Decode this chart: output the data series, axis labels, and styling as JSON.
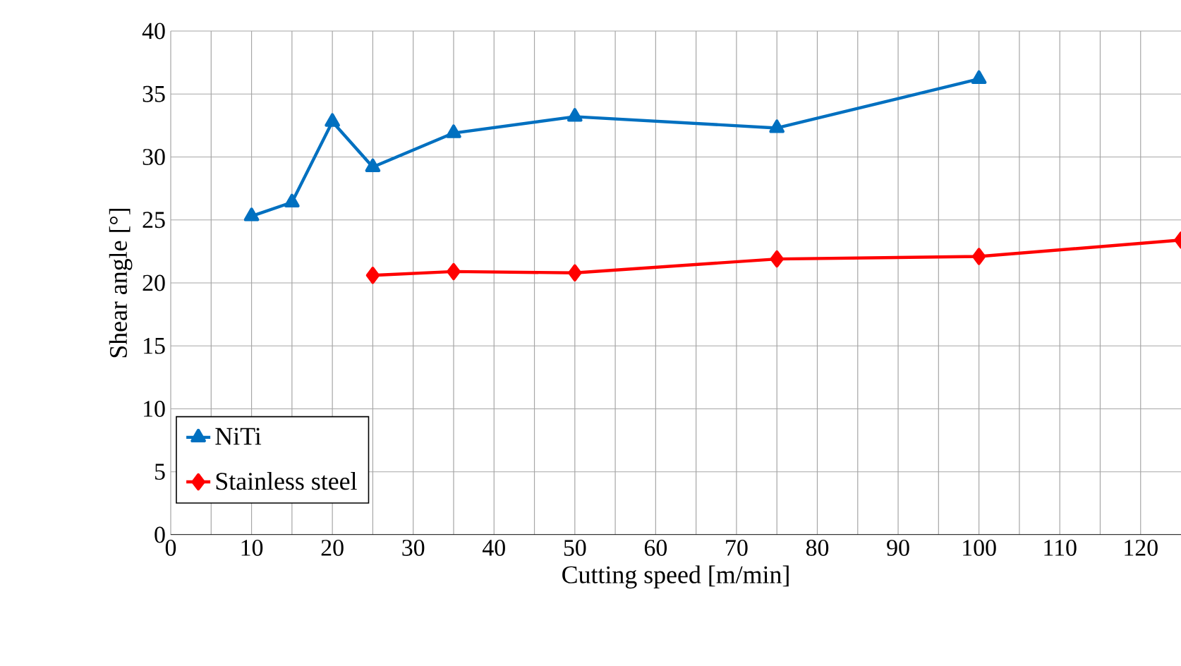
{
  "chart_data": {
    "type": "line",
    "xlabel": "Cutting speed [m/min]",
    "ylabel": "Shear angle [°]",
    "xlim": [
      0,
      125
    ],
    "ylim": [
      0,
      40
    ],
    "xticks": [
      0,
      10,
      20,
      30,
      40,
      50,
      60,
      70,
      80,
      90,
      100,
      110,
      120
    ],
    "yticks": [
      0,
      5,
      10,
      15,
      20,
      25,
      30,
      35,
      40
    ],
    "grid": true,
    "legend": "bottom left",
    "series": [
      {
        "name": "NiTi",
        "color": "#0070c0",
        "marker": "triangle",
        "x": [
          10,
          15,
          20,
          25,
          35,
          50,
          75,
          100
        ],
        "values": [
          25.3,
          26.4,
          32.8,
          29.2,
          31.9,
          33.2,
          32.3,
          36.2
        ]
      },
      {
        "name": "Stainless steel",
        "color": "#ff0000",
        "marker": "diamond",
        "x": [
          25,
          35,
          50,
          75,
          100,
          125
        ],
        "values": [
          20.6,
          20.9,
          20.8,
          21.9,
          22.1,
          23.4
        ]
      }
    ]
  }
}
